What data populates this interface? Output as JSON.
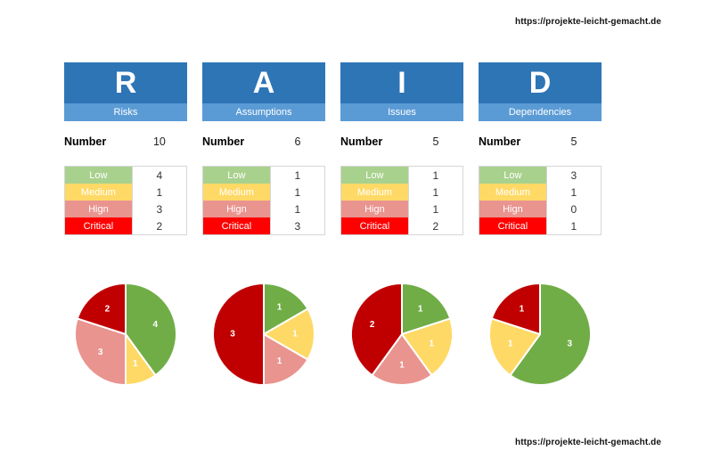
{
  "page": {
    "top_link": "https://projekte-leicht-gemacht.de",
    "bottom_link": "https://projekte-leicht-gemacht.de",
    "number_label": "Number"
  },
  "colors": {
    "header_dark_blue": "#2E75B6",
    "header_light_blue": "#5B9BD5",
    "table_border": "#d6d6d6",
    "low_row": "#A9D18E",
    "medium_row": "#FFD966",
    "high_row": "#E9948F",
    "critical_row": "#FF0000",
    "pie_low": "#70AD47",
    "pie_medium": "#FFD966",
    "pie_high": "#E9948F",
    "pie_critical": "#C00000"
  },
  "severities": [
    {
      "label": "Low",
      "color": "#A9D18E"
    },
    {
      "label": "Medium",
      "color": "#FFD966"
    },
    {
      "label": "Hign",
      "color": "#E9948F"
    },
    {
      "label": "Critical",
      "color": "#FF0000"
    }
  ],
  "columns": [
    {
      "letter": "R",
      "title": "Risks",
      "number": 10,
      "counts": [
        4,
        1,
        3,
        2
      ]
    },
    {
      "letter": "A",
      "title": "Assumptions",
      "number": 6,
      "counts": [
        1,
        1,
        1,
        3
      ]
    },
    {
      "letter": "I",
      "title": "Issues",
      "number": 5,
      "counts": [
        1,
        1,
        1,
        2
      ]
    },
    {
      "letter": "D",
      "title": "Dependencies",
      "number": 5,
      "counts": [
        3,
        1,
        0,
        1
      ]
    }
  ],
  "chart_data": [
    {
      "type": "pie",
      "title": "Risks",
      "categories": [
        "Low",
        "Medium",
        "Hign",
        "Critical"
      ],
      "values": [
        4,
        1,
        3,
        2
      ],
      "colors": [
        "#70AD47",
        "#FFD966",
        "#E9948F",
        "#C00000"
      ],
      "start_angle": "12-oclock",
      "direction": "clockwise",
      "data_labels": [
        4,
        1,
        3,
        2
      ],
      "label_color": "#FFFFFF",
      "legend": "none"
    },
    {
      "type": "pie",
      "title": "Assumptions",
      "categories": [
        "Low",
        "Medium",
        "Hign",
        "Critical"
      ],
      "values": [
        1,
        1,
        1,
        3
      ],
      "colors": [
        "#70AD47",
        "#FFD966",
        "#E9948F",
        "#C00000"
      ],
      "start_angle": "12-oclock",
      "direction": "clockwise",
      "data_labels": [
        1,
        1,
        1,
        3
      ],
      "label_color": "#FFFFFF",
      "legend": "none"
    },
    {
      "type": "pie",
      "title": "Issues",
      "categories": [
        "Low",
        "Medium",
        "Hign",
        "Critical"
      ],
      "values": [
        1,
        1,
        1,
        2
      ],
      "colors": [
        "#70AD47",
        "#FFD966",
        "#E9948F",
        "#C00000"
      ],
      "start_angle": "12-oclock",
      "direction": "clockwise",
      "data_labels": [
        1,
        1,
        1,
        2
      ],
      "label_color": "#FFFFFF",
      "legend": "none"
    },
    {
      "type": "pie",
      "title": "Dependencies",
      "categories": [
        "Low",
        "Medium",
        "Hign",
        "Critical"
      ],
      "values": [
        3,
        1,
        0,
        1
      ],
      "colors": [
        "#70AD47",
        "#FFD966",
        "#E9948F",
        "#C00000"
      ],
      "start_angle": "12-oclock",
      "direction": "clockwise",
      "data_labels": [
        3,
        1,
        0,
        1
      ],
      "label_color": "#FFFFFF",
      "legend": "none"
    }
  ]
}
